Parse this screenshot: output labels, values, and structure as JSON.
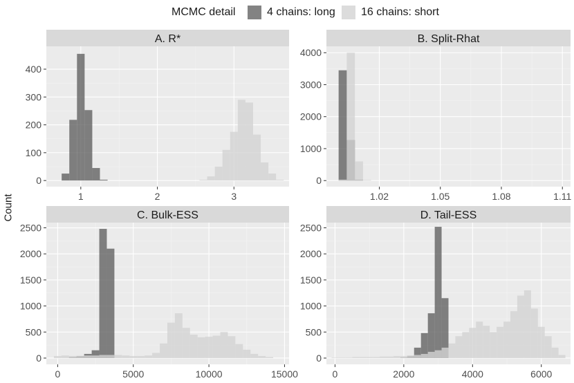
{
  "legend": {
    "title": "MCMC detail",
    "items": [
      {
        "label": "4 chains: long",
        "color": "#595959",
        "alpha": 0.75
      },
      {
        "label": "16 chains: short",
        "color": "#d3d3d3",
        "alpha": 0.8
      }
    ]
  },
  "ylabel": "Count",
  "chart_data": [
    {
      "type": "bar",
      "title": "A. R*",
      "xlim": [
        0.55,
        3.72
      ],
      "ylim": [
        -22,
        482
      ],
      "xticks": [
        1,
        2,
        3
      ],
      "xtick_labels": [
        "1",
        "2",
        "3"
      ],
      "yticks": [
        0,
        100,
        200,
        300,
        400
      ],
      "binwidth": 0.1,
      "series": [
        {
          "name": "4 chains: long",
          "centers": [
            0.8,
            0.9,
            1.0,
            1.1,
            1.2,
            1.3
          ],
          "counts": [
            25,
            218,
            455,
            253,
            45,
            3
          ]
        },
        {
          "name": "16 chains: short",
          "centers": [
            2.6,
            2.7,
            2.8,
            2.9,
            3.0,
            3.1,
            3.2,
            3.3,
            3.4,
            3.5,
            3.6
          ],
          "counts": [
            3,
            15,
            50,
            110,
            175,
            290,
            280,
            165,
            65,
            25,
            3
          ]
        }
      ]
    },
    {
      "type": "bar",
      "title": "B. Split-Rhat",
      "xlim": [
        0.994,
        1.114
      ],
      "ylim": [
        -190,
        4200
      ],
      "xticks": [
        1.02,
        1.05,
        1.08,
        1.11
      ],
      "xtick_labels": [
        "1.02",
        "1.05",
        "1.08",
        "1.11"
      ],
      "yticks": [
        0,
        1000,
        2000,
        3000,
        4000
      ],
      "binwidth": 0.004,
      "series": [
        {
          "name": "4 chains: long",
          "centers": [
            1.002,
            1.006,
            1.01
          ],
          "counts": [
            3450,
            1270,
            30
          ]
        },
        {
          "name": "16 chains: short",
          "centers": [
            1.002,
            1.006,
            1.01,
            1.014
          ],
          "counts": [
            30,
            4000,
            600,
            20
          ]
        }
      ]
    },
    {
      "type": "bar",
      "title": "C. Bulk-ESS",
      "xlim": [
        -750,
        15300
      ],
      "ylim": [
        -120,
        2600
      ],
      "xticks": [
        0,
        5000,
        10000,
        15000
      ],
      "xtick_labels": [
        "0",
        "5000",
        "10000",
        "15000"
      ],
      "yticks": [
        0,
        500,
        1000,
        1500,
        2000,
        2500
      ],
      "binwidth": 500,
      "series": [
        {
          "name": "4 chains: long",
          "centers": [
            1000,
            1500,
            2000,
            2500,
            3000,
            3500
          ],
          "counts": [
            20,
            40,
            80,
            150,
            2480,
            2100
          ]
        },
        {
          "name": "16 chains: short",
          "centers": [
            0,
            500,
            1000,
            1500,
            2000,
            2500,
            3000,
            3500,
            4000,
            4500,
            5000,
            5500,
            6000,
            6500,
            7000,
            7500,
            8000,
            8500,
            9000,
            9500,
            10000,
            10500,
            11000,
            11500,
            12000,
            12500,
            13000,
            13500,
            14000
          ],
          "counts": [
            40,
            50,
            40,
            40,
            50,
            50,
            60,
            60,
            60,
            50,
            40,
            40,
            50,
            100,
            280,
            680,
            860,
            580,
            450,
            400,
            410,
            430,
            500,
            420,
            270,
            160,
            80,
            40,
            20
          ]
        }
      ]
    },
    {
      "type": "bar",
      "title": "D. Tail-ESS",
      "xlim": [
        -250,
        6850
      ],
      "ylim": [
        -120,
        2600
      ],
      "xticks": [
        0,
        2000,
        4000,
        6000
      ],
      "xtick_labels": [
        "0",
        "2000",
        "4000",
        "6000"
      ],
      "yticks": [
        0,
        500,
        1000,
        1500,
        2000,
        2500
      ],
      "binwidth": 200,
      "series": [
        {
          "name": "4 chains: long",
          "centers": [
            2000,
            2200,
            2400,
            2600,
            2800,
            3000,
            3200
          ],
          "counts": [
            10,
            40,
            200,
            480,
            860,
            2520,
            1150
          ]
        },
        {
          "name": "16 chains: short",
          "centers": [
            0,
            200,
            400,
            600,
            800,
            1000,
            1200,
            1400,
            1600,
            1800,
            2000,
            2200,
            2400,
            2600,
            2800,
            3000,
            3200,
            3400,
            3600,
            3800,
            4000,
            4200,
            4400,
            4600,
            4800,
            5000,
            5200,
            5400,
            5600,
            5800,
            6000,
            6200,
            6400,
            6600
          ],
          "counts": [
            10,
            10,
            10,
            20,
            20,
            20,
            20,
            30,
            30,
            40,
            40,
            50,
            60,
            80,
            120,
            150,
            200,
            280,
            420,
            500,
            580,
            700,
            620,
            500,
            600,
            700,
            900,
            1200,
            1300,
            950,
            600,
            420,
            200,
            60
          ]
        }
      ]
    }
  ]
}
